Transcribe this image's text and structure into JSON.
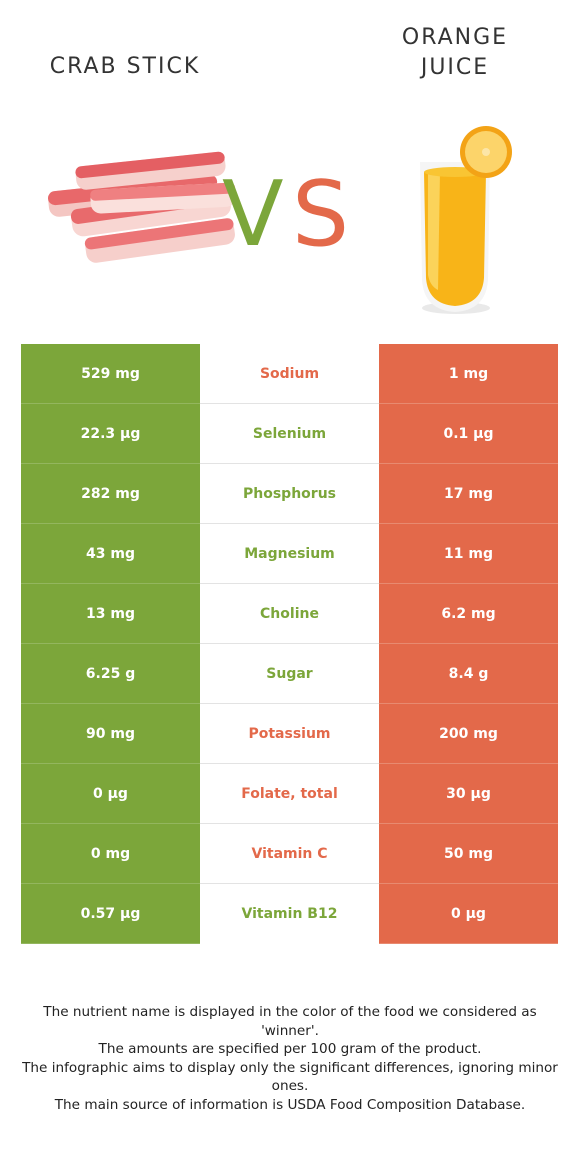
{
  "header": {
    "left_title": "CRAB STICK",
    "right_title_line1": "ORANGE",
    "right_title_line2": "JUICE",
    "vs_v": "V",
    "vs_s": "S"
  },
  "colors": {
    "winner_left": "#7ca63a",
    "winner_right": "#e3694a"
  },
  "rows": [
    {
      "left": "529 mg",
      "nutrient": "Sodium",
      "right": "1 mg",
      "winner": "orange"
    },
    {
      "left": "22.3 µg",
      "nutrient": "Selenium",
      "right": "0.1 µg",
      "winner": "green"
    },
    {
      "left": "282 mg",
      "nutrient": "Phosphorus",
      "right": "17 mg",
      "winner": "green"
    },
    {
      "left": "43 mg",
      "nutrient": "Magnesium",
      "right": "11 mg",
      "winner": "green"
    },
    {
      "left": "13 mg",
      "nutrient": "Choline",
      "right": "6.2 mg",
      "winner": "green"
    },
    {
      "left": "6.25 g",
      "nutrient": "Sugar",
      "right": "8.4 g",
      "winner": "green"
    },
    {
      "left": "90 mg",
      "nutrient": "Potassium",
      "right": "200 mg",
      "winner": "orange"
    },
    {
      "left": "0 µg",
      "nutrient": "Folate, total",
      "right": "30 µg",
      "winner": "orange"
    },
    {
      "left": "0 mg",
      "nutrient": "Vitamin C",
      "right": "50 mg",
      "winner": "orange"
    },
    {
      "left": "0.57 µg",
      "nutrient": "Vitamin B12",
      "right": "0 µg",
      "winner": "green"
    }
  ],
  "footer": {
    "line1": "The nutrient name is displayed in the color of the food we considered as 'winner'.",
    "line2": "The amounts are specified per 100 gram of the product.",
    "line3": "The infographic aims to display only the significant differences, ignoring minor ones.",
    "line4": "The main source of information is USDA Food Composition Database."
  }
}
